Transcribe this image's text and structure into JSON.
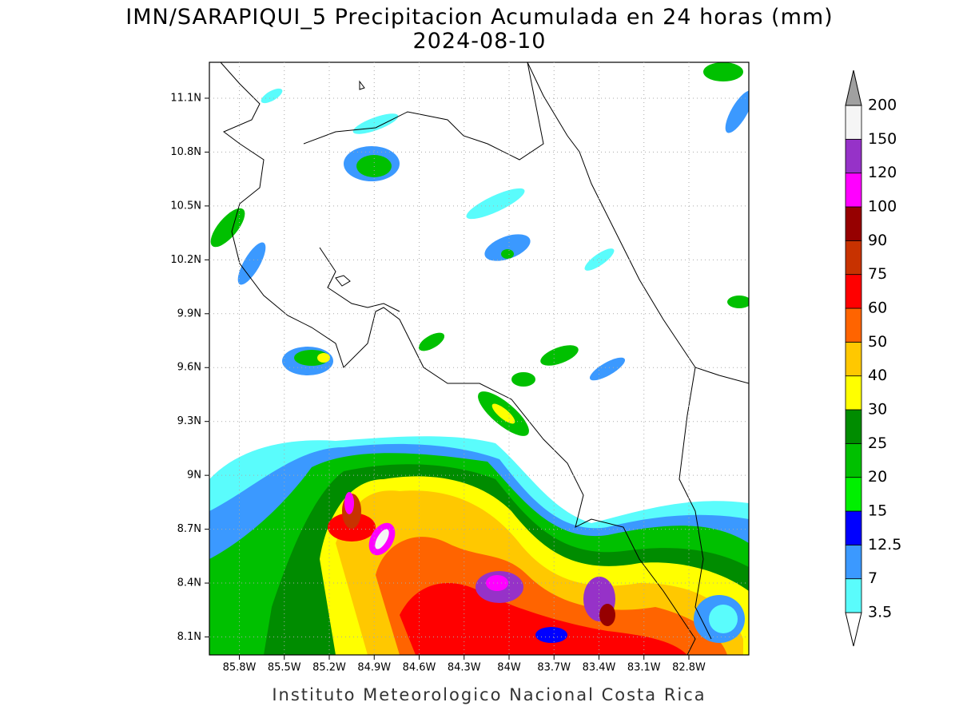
{
  "title": "IMN/SARAPIQUI_5 Precipitacion Acumulada en 24 horas (mm)",
  "subtitle": "2024-08-10",
  "footer": "Instituto Meteorologico Nacional Costa Rica",
  "map": {
    "lat_range": [
      8.0,
      11.3
    ],
    "lon_range": [
      -86.0,
      -82.4
    ],
    "lat_ticks": [
      {
        "value": 8.1,
        "label": "8.1N"
      },
      {
        "value": 8.4,
        "label": "8.4N"
      },
      {
        "value": 8.7,
        "label": "8.7N"
      },
      {
        "value": 9.0,
        "label": "9N"
      },
      {
        "value": 9.3,
        "label": "9.3N"
      },
      {
        "value": 9.6,
        "label": "9.6N"
      },
      {
        "value": 9.9,
        "label": "9.9N"
      },
      {
        "value": 10.2,
        "label": "10.2N"
      },
      {
        "value": 10.5,
        "label": "10.5N"
      },
      {
        "value": 10.8,
        "label": "10.8N"
      },
      {
        "value": 11.1,
        "label": "11.1N"
      }
    ],
    "lon_ticks": [
      {
        "value": -85.8,
        "label": "85.8W"
      },
      {
        "value": -85.5,
        "label": "85.5W"
      },
      {
        "value": -85.2,
        "label": "85.2W"
      },
      {
        "value": -84.9,
        "label": "84.9W"
      },
      {
        "value": -84.6,
        "label": "84.6W"
      },
      {
        "value": -84.3,
        "label": "84.3W"
      },
      {
        "value": -84.0,
        "label": "84W"
      },
      {
        "value": -83.7,
        "label": "83.7W"
      },
      {
        "value": -83.4,
        "label": "83.4W"
      },
      {
        "value": -83.1,
        "label": "83.1W"
      },
      {
        "value": -82.8,
        "label": "82.8W"
      }
    ],
    "grid": true
  },
  "colorbar": {
    "levels": [
      3.5,
      7,
      12.5,
      15,
      20,
      25,
      30,
      40,
      50,
      60,
      75,
      90,
      100,
      120,
      150,
      200
    ],
    "colors": [
      "#5afcfc",
      "#3b99ff",
      "#0000ff",
      "#00f000",
      "#00c000",
      "#008c00",
      "#ffff00",
      "#ffc800",
      "#ff6400",
      "#ff0000",
      "#c83200",
      "#960000",
      "#ff00ff",
      "#9632c8",
      "#f5f5f5"
    ],
    "below_color": "#ffffff",
    "above_color": "#a0a0a0"
  }
}
